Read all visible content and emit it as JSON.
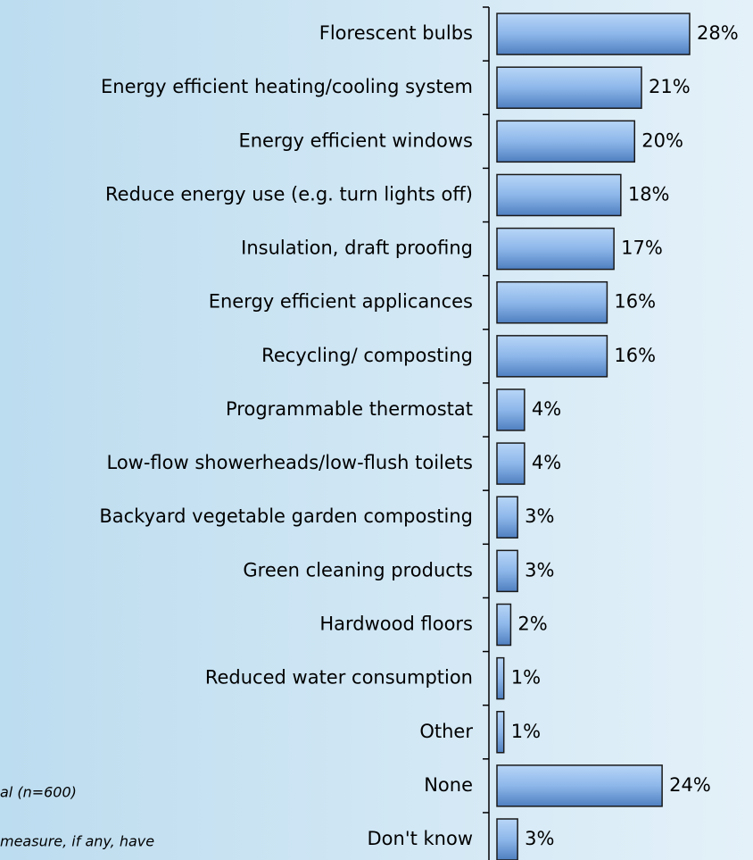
{
  "chart_data": {
    "type": "barh",
    "categories": [
      "Florescent bulbs",
      "Energy efficient heating/cooling system",
      "Energy efficient windows",
      "Reduce energy use (e.g. turn lights off)",
      "Insulation, draft proofing",
      "Energy efficient applicances",
      "Recycling/ composting",
      "Programmable thermostat",
      "Low-flow showerheads/low-flush toilets",
      "Backyard vegetable garden composting",
      "Green cleaning products",
      "Hardwood floors",
      "Reduced water consumption",
      "Other",
      "None",
      "Don't know"
    ],
    "values": [
      28,
      21,
      20,
      18,
      17,
      16,
      16,
      4,
      4,
      3,
      3,
      2,
      1,
      1,
      24,
      3
    ],
    "value_labels": [
      "28%",
      "21%",
      "20%",
      "18%",
      "17%",
      "16%",
      "16%",
      "4%",
      "4%",
      "3%",
      "3%",
      "2%",
      "1%",
      "1%",
      "24%",
      "3%"
    ],
    "color": "#7fabe6",
    "xlim": [
      0,
      30
    ],
    "annotations": [
      "al (n=600)",
      "measure, if any, have"
    ]
  }
}
